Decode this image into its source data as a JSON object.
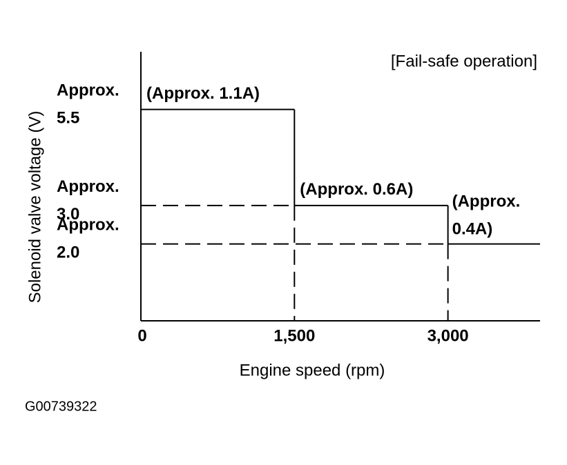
{
  "chart_data": {
    "type": "step",
    "title": "[Fail-safe operation]",
    "y_label": "Solenoid valve voltage (V)",
    "x_label": "Engine speed (rpm)",
    "figure_id": "G00739322",
    "x": [
      0,
      1500,
      3000
    ],
    "values": [
      5.5,
      3.0,
      2.0
    ],
    "annotations": [
      "(Approx. 1.1A)",
      "(Approx. 0.6A)",
      "(Approx. 0.4A)"
    ],
    "color": "#000000",
    "xlim": [
      0,
      3900
    ],
    "xticks": [
      0,
      {
        "value": 1500,
        "label": "1,500"
      },
      {
        "value": 3000,
        "label": "3,000"
      }
    ],
    "ylim": [
      0,
      7
    ],
    "yticks": [
      {
        "value": 5.5,
        "label": "Approx. 5.5"
      },
      {
        "value": 3.0,
        "label": "Approx. 3.0"
      },
      {
        "value": 2.0,
        "label": "Approx. 2.0"
      }
    ]
  }
}
